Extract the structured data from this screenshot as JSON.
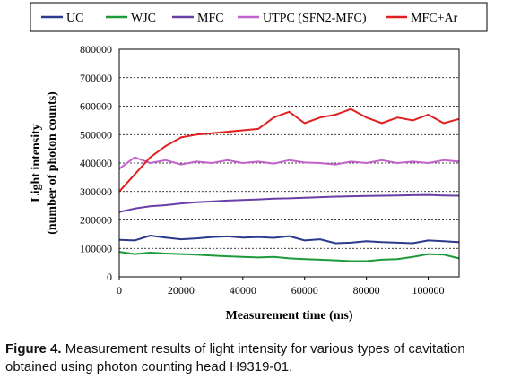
{
  "caption": {
    "label": "Figure 4.",
    "text": "Measurement results of light intensity for various types of cavitation obtained using photon counting head H9319-01."
  },
  "chart_data": {
    "type": "line",
    "xlabel": "Measurement time (ms)",
    "ylabel_line1": "Light intensity",
    "ylabel_line2": "(number of photon counts)",
    "xlim": [
      0,
      110000
    ],
    "ylim": [
      0,
      800000
    ],
    "x_ticks": [
      0,
      20000,
      40000,
      60000,
      80000,
      100000
    ],
    "y_ticks": [
      0,
      100000,
      200000,
      300000,
      400000,
      500000,
      600000,
      700000,
      800000
    ],
    "grid": "horizontal dashed",
    "legend_position": "top",
    "series": [
      {
        "name": "UC",
        "color": "#2b3a8c",
        "x": [
          0,
          5000,
          10000,
          15000,
          20000,
          25000,
          30000,
          35000,
          40000,
          45000,
          50000,
          55000,
          60000,
          65000,
          70000,
          75000,
          80000,
          85000,
          90000,
          95000,
          100000,
          105000,
          110000
        ],
        "values": [
          130000,
          128000,
          145000,
          138000,
          132000,
          135000,
          140000,
          142000,
          138000,
          140000,
          137000,
          143000,
          128000,
          132000,
          118000,
          120000,
          125000,
          122000,
          120000,
          118000,
          128000,
          125000,
          122000
        ]
      },
      {
        "name": "WJC",
        "color": "#1e9a3a",
        "x": [
          0,
          5000,
          10000,
          15000,
          20000,
          25000,
          30000,
          35000,
          40000,
          45000,
          50000,
          55000,
          60000,
          65000,
          70000,
          75000,
          80000,
          85000,
          90000,
          95000,
          100000,
          105000,
          110000
        ],
        "values": [
          88000,
          80000,
          85000,
          82000,
          80000,
          78000,
          75000,
          72000,
          70000,
          68000,
          70000,
          65000,
          62000,
          60000,
          58000,
          55000,
          55000,
          60000,
          62000,
          70000,
          80000,
          78000,
          65000
        ]
      },
      {
        "name": "MFC",
        "color": "#6a3fa8",
        "x": [
          0,
          5000,
          10000,
          15000,
          20000,
          25000,
          30000,
          35000,
          40000,
          45000,
          50000,
          55000,
          60000,
          65000,
          70000,
          75000,
          80000,
          85000,
          90000,
          95000,
          100000,
          105000,
          110000
        ],
        "values": [
          228000,
          240000,
          248000,
          252000,
          258000,
          262000,
          265000,
          268000,
          270000,
          272000,
          275000,
          276000,
          278000,
          280000,
          282000,
          283000,
          284000,
          285000,
          286000,
          287000,
          288000,
          286000,
          285000
        ]
      },
      {
        "name": "UTPC (SFN2-MFC)",
        "color": "#c062c9",
        "x": [
          0,
          5000,
          10000,
          15000,
          20000,
          25000,
          30000,
          35000,
          40000,
          45000,
          50000,
          55000,
          60000,
          65000,
          70000,
          75000,
          80000,
          85000,
          90000,
          95000,
          100000,
          105000,
          110000
        ],
        "values": [
          380000,
          420000,
          400000,
          410000,
          395000,
          405000,
          400000,
          410000,
          400000,
          405000,
          398000,
          410000,
          402000,
          400000,
          395000,
          405000,
          400000,
          410000,
          400000,
          405000,
          400000,
          410000,
          405000
        ]
      },
      {
        "name": "MFC+Ar",
        "color": "#e02020",
        "x": [
          0,
          5000,
          10000,
          15000,
          20000,
          25000,
          30000,
          35000,
          40000,
          45000,
          50000,
          55000,
          60000,
          65000,
          70000,
          75000,
          80000,
          85000,
          90000,
          95000,
          100000,
          105000,
          110000
        ],
        "values": [
          300000,
          360000,
          420000,
          460000,
          490000,
          500000,
          505000,
          510000,
          515000,
          520000,
          560000,
          580000,
          540000,
          560000,
          570000,
          590000,
          560000,
          540000,
          560000,
          550000,
          570000,
          540000,
          555000
        ]
      }
    ]
  }
}
